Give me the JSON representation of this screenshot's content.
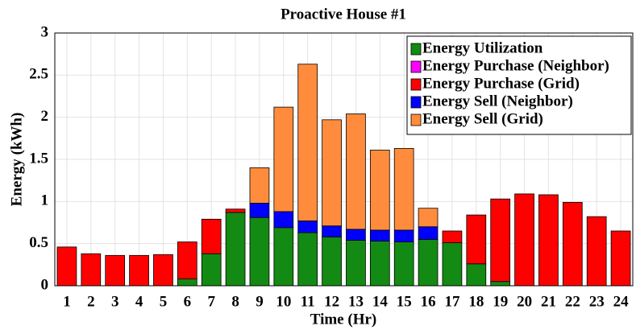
{
  "chart_data": {
    "type": "stacked_bar",
    "title": "Proactive House #1",
    "xlabel": "Time (Hr)",
    "ylabel": "Energy (kWh)",
    "categories": [
      "1",
      "2",
      "3",
      "4",
      "5",
      "6",
      "7",
      "8",
      "9",
      "10",
      "11",
      "12",
      "13",
      "14",
      "15",
      "16",
      "17",
      "18",
      "19",
      "20",
      "21",
      "22",
      "23",
      "24"
    ],
    "series": [
      {
        "name": "Energy Utilization",
        "color": "#138a13",
        "values": [
          0,
          0,
          0,
          0,
          0,
          0.08,
          0.38,
          0.87,
          0.81,
          0.69,
          0.63,
          0.58,
          0.54,
          0.53,
          0.52,
          0.55,
          0.51,
          0.26,
          0.05,
          0,
          0,
          0,
          0,
          0
        ]
      },
      {
        "name": "Energy Purchase (Neighbor)",
        "color": "#ff00ff",
        "values": [
          0,
          0,
          0,
          0,
          0,
          0,
          0,
          0,
          0,
          0,
          0,
          0,
          0,
          0,
          0,
          0,
          0,
          0,
          0,
          0,
          0,
          0,
          0,
          0
        ]
      },
      {
        "name": "Energy Purchase (Grid)",
        "color": "#ff0000",
        "values": [
          0.46,
          0.38,
          0.36,
          0.36,
          0.37,
          0.44,
          0.41,
          0.04,
          0,
          0,
          0,
          0,
          0,
          0,
          0,
          0,
          0.14,
          0.58,
          0.98,
          1.09,
          1.08,
          0.99,
          0.82,
          0.65
        ]
      },
      {
        "name": "Energy Sell (Neighbor)",
        "color": "#0000ff",
        "values": [
          0,
          0,
          0,
          0,
          0,
          0,
          0,
          0,
          0.17,
          0.19,
          0.14,
          0.13,
          0.13,
          0.13,
          0.14,
          0.15,
          0,
          0,
          0,
          0,
          0,
          0,
          0,
          0
        ]
      },
      {
        "name": "Energy Sell (Grid)",
        "color": "#ff8c3c",
        "values": [
          0,
          0,
          0,
          0,
          0,
          0,
          0,
          0,
          0.42,
          1.24,
          1.86,
          1.26,
          1.37,
          0.95,
          0.97,
          0.22,
          0,
          0,
          0,
          0,
          0,
          0,
          0,
          0
        ]
      }
    ],
    "ylim": [
      0,
      3
    ],
    "yticks": [
      0,
      0.5,
      1,
      1.5,
      2,
      2.5,
      3
    ],
    "grid": true,
    "legend": "upper-right"
  }
}
